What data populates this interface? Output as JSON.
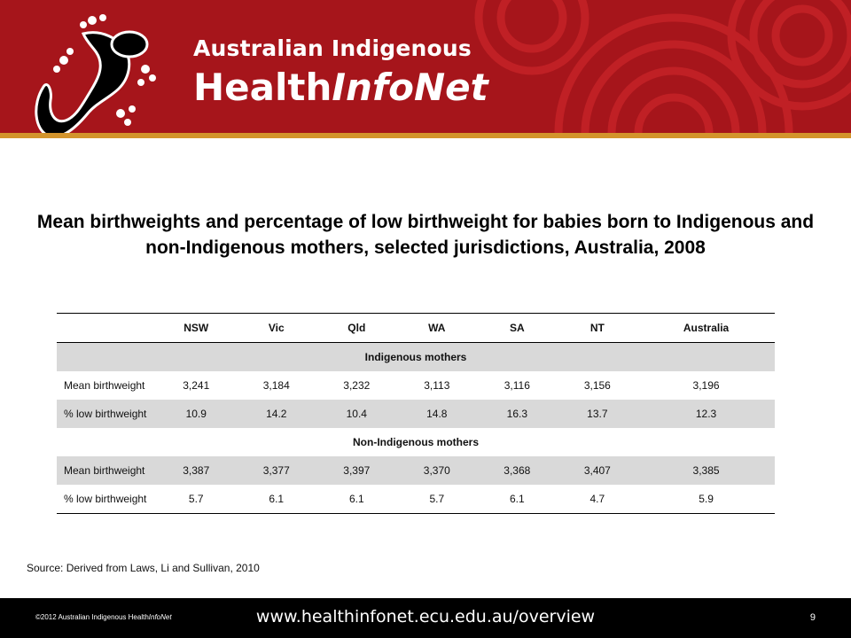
{
  "brand": {
    "line1": "Australian Indigenous",
    "line2_regular": "Health",
    "line2_italic": "InfoNet"
  },
  "colors": {
    "header_red": "#a6151b",
    "header_gold": "#d3942c",
    "shade_gray": "#d9d9d9",
    "footer_black": "#000000"
  },
  "title": "Mean birthweights and percentage of low birthweight for babies born to Indigenous and non-Indigenous  mothers, selected jurisdictions, Australia, 2008",
  "table": {
    "headers": [
      "",
      "NSW",
      "Vic",
      "Qld",
      "WA",
      "SA",
      "NT",
      "Australia"
    ],
    "groups": [
      {
        "label": "Indigenous mothers",
        "rows": [
          {
            "label": "Mean birthweight",
            "values": [
              "3,241",
              "3,184",
              "3,232",
              "3,113",
              "3,116",
              "3,156",
              "3,196"
            ]
          },
          {
            "label": "% low birthweight",
            "values": [
              "10.9",
              "14.2",
              "10.4",
              "14.8",
              "16.3",
              "13.7",
              "12.3"
            ]
          }
        ]
      },
      {
        "label": "Non-Indigenous mothers",
        "rows": [
          {
            "label": "Mean birthweight",
            "values": [
              "3,387",
              "3,377",
              "3,397",
              "3,370",
              "3,368",
              "3,407",
              "3,385"
            ]
          },
          {
            "label": "% low birthweight",
            "values": [
              "5.7",
              "6.1",
              "6.1",
              "5.7",
              "6.1",
              "4.7",
              "5.9"
            ]
          }
        ]
      }
    ]
  },
  "source": "Source: Derived from Laws, Li and Sullivan, 2010",
  "footer": {
    "copyright_prefix": "©2012 Australian Indigenous Health",
    "copyright_italic": "InfoNet",
    "url": "www.healthinfonet.ecu.edu.au/overview",
    "page_number": "9"
  },
  "icons": {
    "logo": "gecko-logo-icon"
  }
}
